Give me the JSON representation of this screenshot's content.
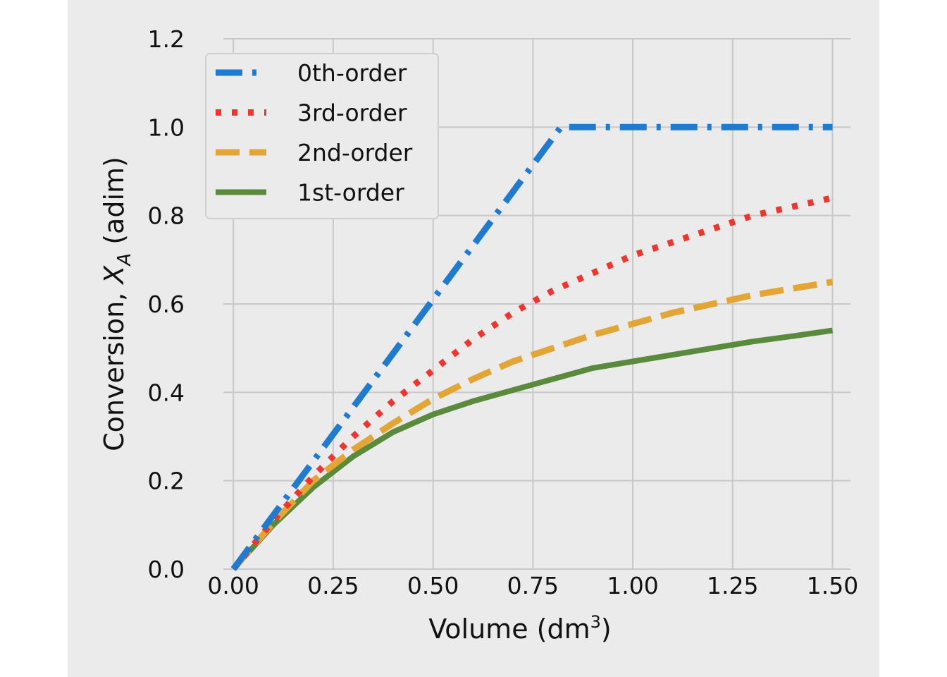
{
  "chart_data": {
    "type": "line",
    "title": "",
    "xlabel": "Volume (dm",
    "xlabel_superscript": "3",
    "xlabel_suffix": ")",
    "ylabel_prefix": "Conversion, ",
    "ylabel_var": "X",
    "ylabel_sub": "A",
    "ylabel_suffix": " (adim)",
    "xlim": [
      -0.025,
      1.545
    ],
    "ylim": [
      0.0,
      1.2
    ],
    "x_ticks": [
      "0.00",
      "0.25",
      "0.50",
      "0.75",
      "1.00",
      "1.25",
      "1.50"
    ],
    "y_ticks": [
      "0.0",
      "0.2",
      "0.4",
      "0.6",
      "0.8",
      "1.0",
      "1.2"
    ],
    "grid": true,
    "legend_position": "top-left",
    "background_color": "#ebebeb",
    "grid_color": "#c8c8c8",
    "series": [
      {
        "name": "0th-order",
        "color": "#1f7bd0",
        "style": "dash-dot",
        "x": [
          0.0,
          0.1,
          0.2,
          0.3,
          0.4,
          0.5,
          0.6,
          0.7,
          0.82,
          0.9,
          1.0,
          1.1,
          1.2,
          1.3,
          1.4,
          1.5
        ],
        "y": [
          0.0,
          0.122,
          0.244,
          0.366,
          0.488,
          0.61,
          0.732,
          0.854,
          1.0,
          1.0,
          1.0,
          1.0,
          1.0,
          1.0,
          1.0,
          1.0
        ]
      },
      {
        "name": "3rd-order",
        "color": "#f0352e",
        "style": "dotted",
        "x": [
          0.0,
          0.1,
          0.2,
          0.3,
          0.4,
          0.5,
          0.6,
          0.7,
          0.8,
          0.9,
          1.0,
          1.1,
          1.2,
          1.3,
          1.4,
          1.5
        ],
        "y": [
          0.0,
          0.11,
          0.21,
          0.3,
          0.38,
          0.45,
          0.52,
          0.58,
          0.63,
          0.67,
          0.71,
          0.74,
          0.77,
          0.8,
          0.82,
          0.84
        ]
      },
      {
        "name": "2nd-order",
        "color": "#e3a533",
        "style": "dashed",
        "x": [
          0.0,
          0.1,
          0.2,
          0.3,
          0.4,
          0.5,
          0.6,
          0.7,
          0.8,
          0.9,
          1.0,
          1.1,
          1.2,
          1.3,
          1.4,
          1.5
        ],
        "y": [
          0.0,
          0.105,
          0.2,
          0.27,
          0.33,
          0.385,
          0.43,
          0.47,
          0.5,
          0.53,
          0.555,
          0.58,
          0.6,
          0.62,
          0.635,
          0.65
        ]
      },
      {
        "name": "1st-order",
        "color": "#5a8a3c",
        "style": "solid",
        "x": [
          0.0,
          0.1,
          0.2,
          0.3,
          0.4,
          0.5,
          0.6,
          0.7,
          0.8,
          0.9,
          1.0,
          1.1,
          1.2,
          1.3,
          1.4,
          1.5
        ],
        "y": [
          0.0,
          0.1,
          0.185,
          0.255,
          0.31,
          0.35,
          0.38,
          0.405,
          0.43,
          0.455,
          0.47,
          0.485,
          0.5,
          0.515,
          0.527,
          0.54
        ]
      }
    ]
  }
}
